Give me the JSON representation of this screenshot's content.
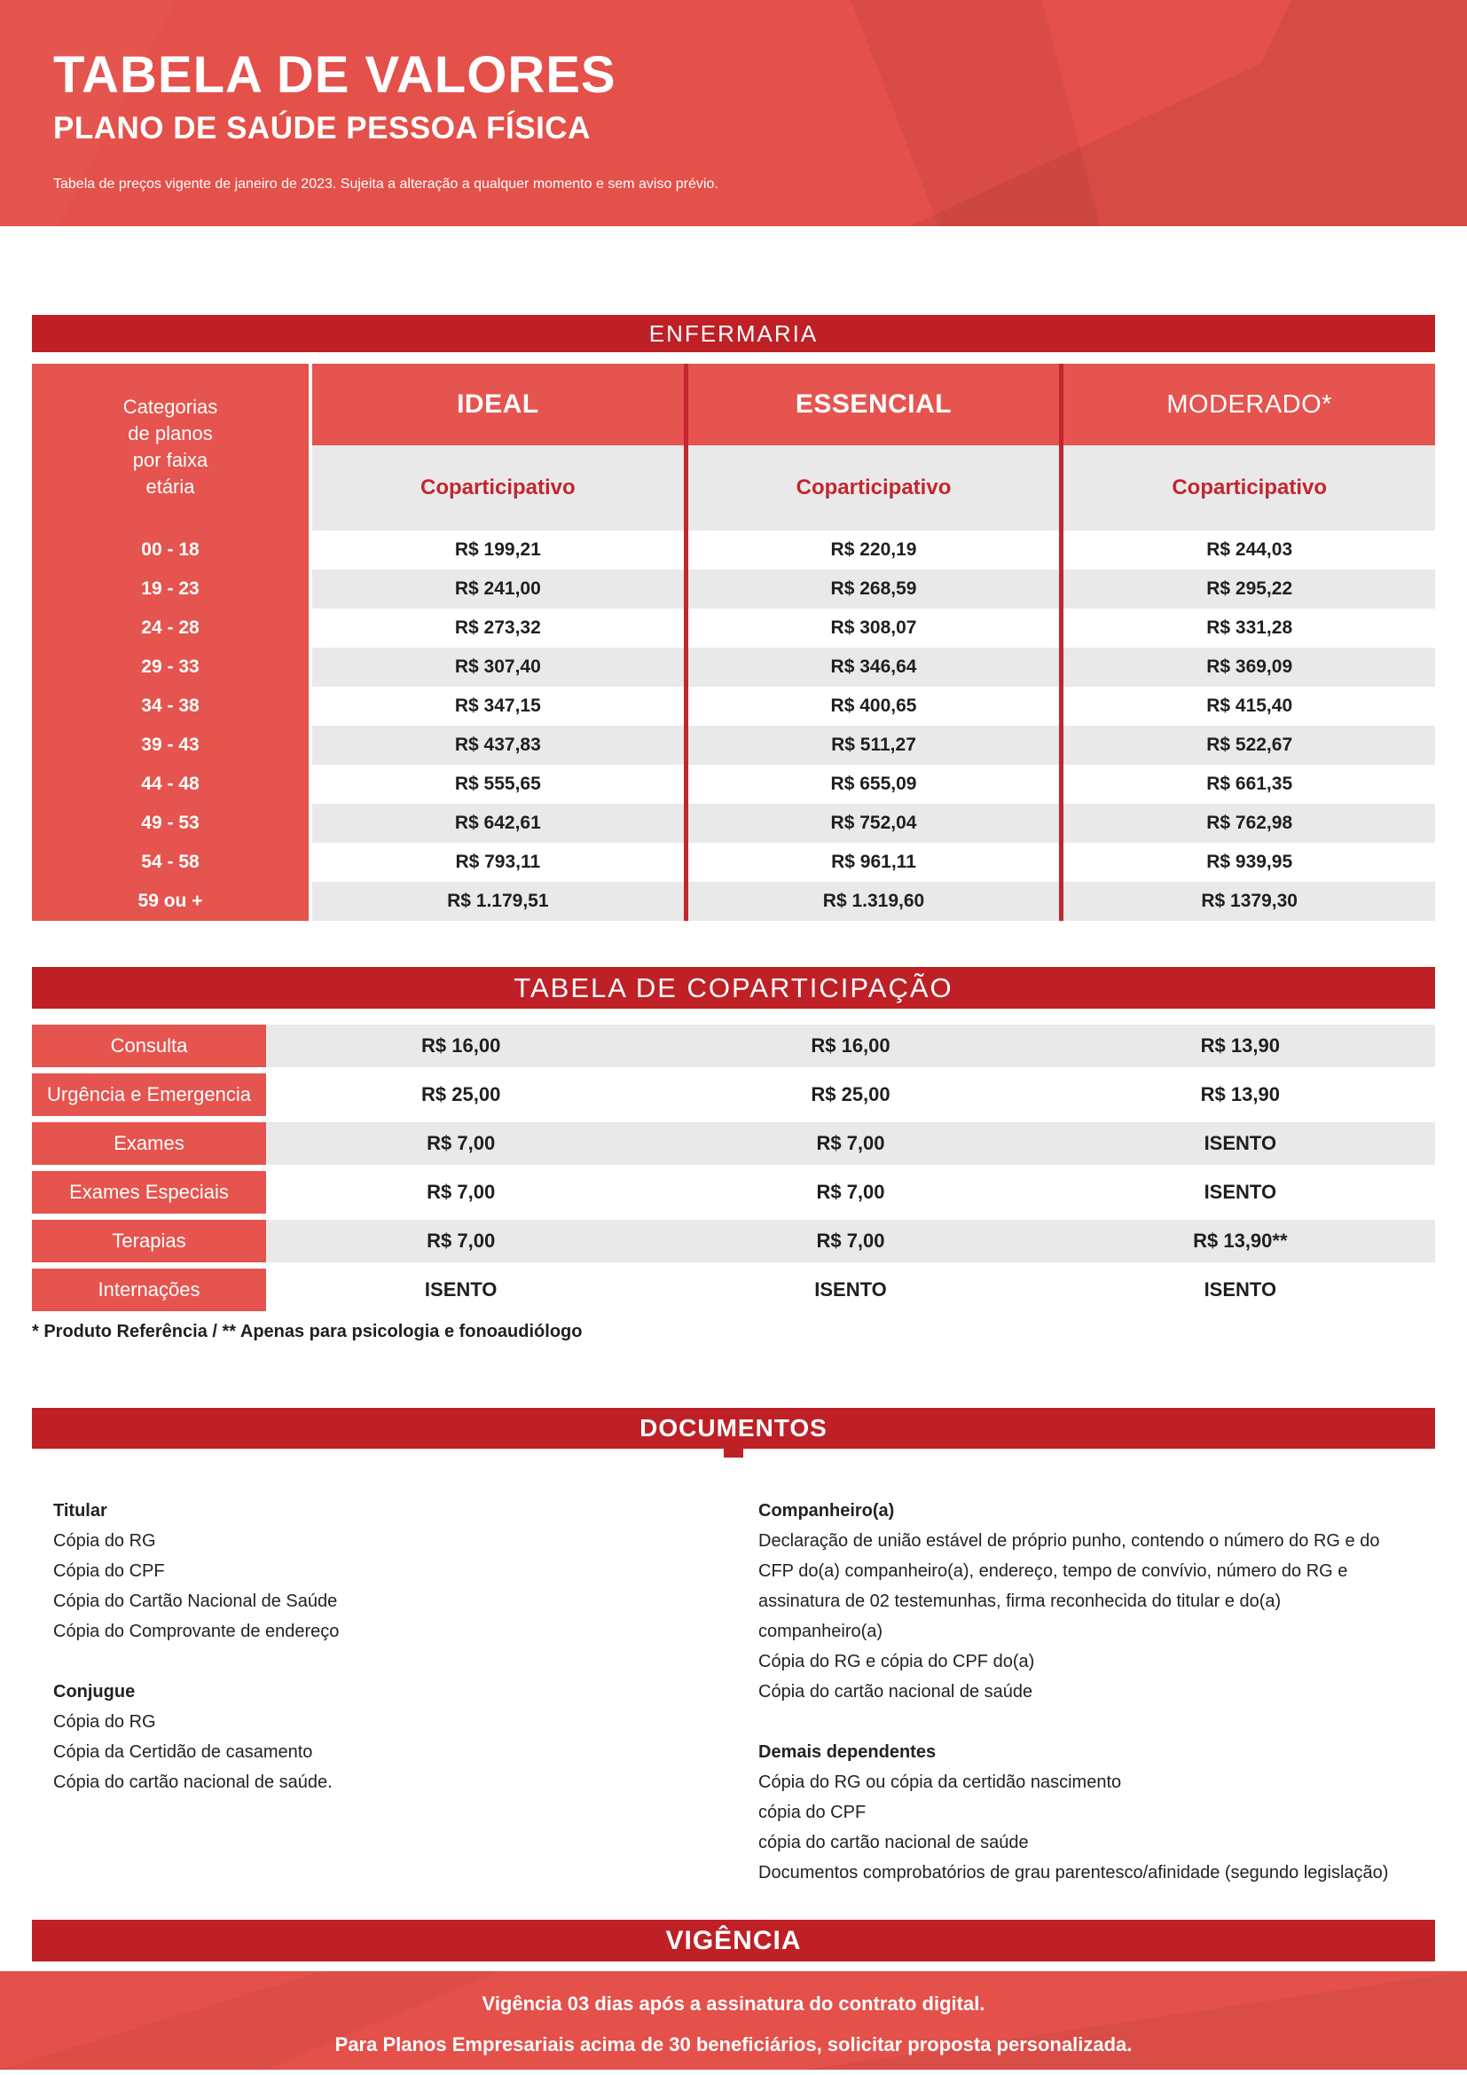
{
  "colors": {
    "accent_light": "#E4504A",
    "accent_mid": "#E5544E",
    "accent_dark": "#BE2026",
    "divider_red": "#C1272D",
    "row_gray": "#E9E9E9",
    "value_text": "#1F1F1F"
  },
  "header": {
    "title": "TABELA DE VALORES",
    "subtitle": "PLANO DE SAÚDE PESSOA FÍSICA",
    "note": "Tabela de preços vigente de janeiro de 2023. Sujeita a alteração a qualquer momento e sem aviso prévio."
  },
  "enfermaria": {
    "section_title": "ENFERMARIA",
    "category_lines": [
      "Categorias",
      "de planos",
      "por faixa",
      "etária"
    ],
    "plans": [
      {
        "name": "IDEAL",
        "sub": "Coparticipativo"
      },
      {
        "name": "ESSENCIAL",
        "sub": "Coparticipativo"
      },
      {
        "name": "MODERADO*",
        "sub": "Coparticipativo"
      }
    ],
    "rows": [
      {
        "age": "00 - 18",
        "ideal": "R$ 199,21",
        "essencial": "R$ 220,19",
        "moderado": "R$ 244,03"
      },
      {
        "age": "19 - 23",
        "ideal": "R$ 241,00",
        "essencial": "R$ 268,59",
        "moderado": "R$ 295,22"
      },
      {
        "age": "24 - 28",
        "ideal": "R$ 273,32",
        "essencial": "R$ 308,07",
        "moderado": "R$ 331,28"
      },
      {
        "age": "29 - 33",
        "ideal": "R$ 307,40",
        "essencial": "R$ 346,64",
        "moderado": "R$ 369,09"
      },
      {
        "age": "34 - 38",
        "ideal": "R$ 347,15",
        "essencial": "R$ 400,65",
        "moderado": "R$ 415,40"
      },
      {
        "age": "39 - 43",
        "ideal": "R$ 437,83",
        "essencial": "R$ 511,27",
        "moderado": "R$ 522,67"
      },
      {
        "age": "44 - 48",
        "ideal": "R$ 555,65",
        "essencial": "R$ 655,09",
        "moderado": "R$ 661,35"
      },
      {
        "age": "49 - 53",
        "ideal": "R$ 642,61",
        "essencial": "R$ 752,04",
        "moderado": "R$ 762,98"
      },
      {
        "age": "54 - 58",
        "ideal": "R$ 793,11",
        "essencial": "R$ 961,11",
        "moderado": "R$ 939,95"
      },
      {
        "age": "59 ou +",
        "ideal": "R$ 1.179,51",
        "essencial": "R$ 1.319,60",
        "moderado": "R$ 1379,30"
      }
    ]
  },
  "coparticipacao": {
    "section_title": "TABELA DE COPARTICIPAÇÃO",
    "rows": [
      {
        "label": "Consulta",
        "ideal": "R$ 16,00",
        "essencial": "R$ 16,00",
        "moderado": "R$ 13,90"
      },
      {
        "label": "Urgência e Emergencia",
        "ideal": "R$ 25,00",
        "essencial": "R$ 25,00",
        "moderado": "R$ 13,90"
      },
      {
        "label": "Exames",
        "ideal": "R$ 7,00",
        "essencial": "R$ 7,00",
        "moderado": "ISENTO"
      },
      {
        "label": "Exames Especiais",
        "ideal": "R$ 7,00",
        "essencial": "R$ 7,00",
        "moderado": "ISENTO"
      },
      {
        "label": "Terapias",
        "ideal": "R$ 7,00",
        "essencial": "R$ 7,00",
        "moderado": "R$ 13,90**"
      },
      {
        "label": "Internações",
        "ideal": "ISENTO",
        "essencial": "ISENTO",
        "moderado": "ISENTO"
      }
    ],
    "footnote": "* Produto Referência / ** Apenas para psicologia e fonoaudiólogo"
  },
  "documentos": {
    "section_title": "DOCUMENTOS",
    "left": [
      "Titular",
      "Cópia do RG",
      "Cópia do CPF",
      "Cópia do Cartão Nacional de Saúde",
      "Cópia do Comprovante de endereço",
      "Conjugue",
      "Cópia do RG",
      "Cópia da Certidão de casamento",
      "Cópia do cartão  nacional de saúde."
    ],
    "right": [
      "Companheiro(a)",
      "Declaração de união estável de próprio punho, contendo o número do RG e do",
      "CFP do(a) companheiro(a), endereço, tempo de convívio, número do RG e",
      "assinatura de 02 testemunhas, firma reconhecida do titular e do(a)",
      "companheiro(a)",
      "Cópia do RG e cópia do CPF do(a)",
      "Cópia do cartão nacional de saúde",
      "Demais dependentes",
      "Cópia do RG ou cópia da certidão nascimento",
      "cópia do CPF",
      "cópia do cartão nacional de saúde",
      "Documentos comprobatórios de grau parentesco/afinidade (segundo legislação)"
    ]
  },
  "vigencia": {
    "section_title": "VIGÊNCIA",
    "lines": [
      "Vigência 03 dias após a assinatura do contrato digital.",
      "Para Planos Empresariais acima de 30 beneficiários, solicitar proposta personalizada."
    ]
  }
}
